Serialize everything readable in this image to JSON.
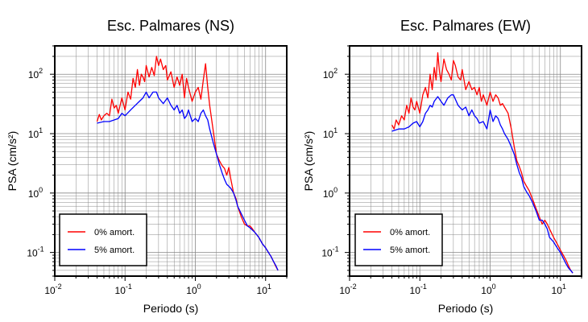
{
  "chart_data": [
    {
      "type": "line",
      "title": "Esc. Palmares (NS)",
      "xlabel": "Periodo (s)",
      "ylabel": "PSA (cm/s²)",
      "x_scale": "log",
      "y_scale": "log",
      "xlim": [
        0.01,
        20
      ],
      "ylim": [
        0.04,
        300
      ],
      "grid": true,
      "legend_position": "bottom-left",
      "x_ticks": [
        0.01,
        0.1,
        1,
        10
      ],
      "y_ticks": [
        0.1,
        1,
        10,
        100
      ],
      "series": [
        {
          "name": "0% amort.",
          "color": "#ff0000",
          "x": [
            0.04,
            0.043,
            0.046,
            0.05,
            0.055,
            0.06,
            0.065,
            0.07,
            0.075,
            0.08,
            0.09,
            0.1,
            0.11,
            0.12,
            0.13,
            0.14,
            0.15,
            0.16,
            0.17,
            0.18,
            0.19,
            0.2,
            0.22,
            0.24,
            0.26,
            0.28,
            0.3,
            0.32,
            0.35,
            0.38,
            0.4,
            0.45,
            0.5,
            0.55,
            0.6,
            0.65,
            0.7,
            0.75,
            0.8,
            0.9,
            1.0,
            1.1,
            1.2,
            1.3,
            1.4,
            1.5,
            1.6,
            1.8,
            2.0,
            2.2,
            2.4,
            2.6,
            2.8,
            3.0,
            3.2,
            3.5,
            3.8,
            4.0,
            4.5,
            5.0,
            5.5,
            6.0,
            6.5,
            7.0,
            8.0,
            9.0,
            10.0,
            11.0,
            12.0,
            13.0,
            14.0,
            15.0
          ],
          "values": [
            16,
            21,
            17,
            20,
            22,
            20,
            38,
            27,
            30,
            22,
            40,
            25,
            50,
            38,
            85,
            60,
            120,
            65,
            100,
            90,
            75,
            140,
            90,
            130,
            95,
            200,
            140,
            180,
            120,
            140,
            80,
            110,
            60,
            90,
            65,
            100,
            40,
            85,
            60,
            35,
            50,
            60,
            38,
            80,
            150,
            60,
            30,
            11,
            4.5,
            3.5,
            2.9,
            2.6,
            2.0,
            2.7,
            1.7,
            1.0,
            0.8,
            0.6,
            0.4,
            0.3,
            0.28,
            0.28,
            0.25,
            0.22,
            0.18,
            0.14,
            0.12,
            0.1,
            0.085,
            0.07,
            0.058,
            0.05
          ]
        },
        {
          "name": "5% amort.",
          "color": "#0000ff",
          "x": [
            0.04,
            0.05,
            0.06,
            0.07,
            0.08,
            0.09,
            0.1,
            0.12,
            0.14,
            0.16,
            0.18,
            0.2,
            0.22,
            0.25,
            0.28,
            0.3,
            0.35,
            0.4,
            0.45,
            0.5,
            0.55,
            0.6,
            0.65,
            0.7,
            0.75,
            0.8,
            0.9,
            1.0,
            1.1,
            1.2,
            1.3,
            1.4,
            1.5,
            1.6,
            1.8,
            2.0,
            2.2,
            2.4,
            2.6,
            2.8,
            3.0,
            3.2,
            3.5,
            3.8,
            4.0,
            4.5,
            5.0,
            5.5,
            6.0,
            7.0,
            8.0,
            9.0,
            10.0,
            11.0,
            12.0,
            13.0,
            14.0,
            15.0
          ],
          "values": [
            15,
            16,
            16,
            17,
            18,
            22,
            20,
            25,
            30,
            35,
            40,
            50,
            40,
            50,
            50,
            40,
            32,
            40,
            30,
            25,
            30,
            22,
            25,
            18,
            20,
            25,
            16,
            18,
            16,
            22,
            25,
            20,
            17,
            12,
            7,
            4.5,
            3.0,
            2.2,
            1.7,
            1.4,
            1.3,
            1.2,
            1.0,
            0.75,
            0.6,
            0.45,
            0.35,
            0.28,
            0.26,
            0.22,
            0.18,
            0.14,
            0.12,
            0.1,
            0.085,
            0.07,
            0.06,
            0.05
          ]
        }
      ]
    },
    {
      "type": "line",
      "title": "Esc. Palmares (EW)",
      "xlabel": "Periodo (s)",
      "ylabel": "PSA (cm/s²)",
      "x_scale": "log",
      "y_scale": "log",
      "xlim": [
        0.01,
        20
      ],
      "ylim": [
        0.04,
        300
      ],
      "grid": true,
      "legend_position": "bottom-left",
      "x_ticks": [
        0.01,
        0.1,
        1,
        10
      ],
      "y_ticks": [
        0.1,
        1,
        10,
        100
      ],
      "series": [
        {
          "name": "0% amort.",
          "color": "#ff0000",
          "x": [
            0.04,
            0.043,
            0.046,
            0.05,
            0.055,
            0.06,
            0.065,
            0.07,
            0.075,
            0.08,
            0.085,
            0.09,
            0.1,
            0.11,
            0.12,
            0.13,
            0.14,
            0.15,
            0.16,
            0.17,
            0.18,
            0.19,
            0.2,
            0.22,
            0.24,
            0.26,
            0.28,
            0.3,
            0.32,
            0.35,
            0.38,
            0.4,
            0.45,
            0.5,
            0.55,
            0.6,
            0.65,
            0.7,
            0.75,
            0.8,
            0.9,
            1.0,
            1.1,
            1.2,
            1.3,
            1.4,
            1.5,
            1.6,
            1.8,
            2.0,
            2.2,
            2.4,
            2.6,
            2.8,
            3.0,
            3.3,
            3.6,
            4.0,
            4.5,
            5.0,
            5.5,
            6.0,
            6.5,
            7.0,
            8.0,
            9.0,
            10.0,
            11.0,
            12.0,
            13.0,
            14.0,
            15.0
          ],
          "values": [
            14,
            12,
            17,
            14,
            20,
            17,
            30,
            22,
            40,
            28,
            25,
            35,
            22,
            45,
            60,
            40,
            100,
            55,
            130,
            80,
            230,
            110,
            75,
            180,
            120,
            100,
            80,
            170,
            140,
            90,
            80,
            120,
            55,
            75,
            55,
            60,
            45,
            60,
            35,
            45,
            30,
            50,
            35,
            45,
            40,
            30,
            32,
            28,
            22,
            12,
            6,
            3.5,
            2.8,
            2.2,
            1.6,
            1.3,
            1.1,
            0.8,
            0.55,
            0.4,
            0.3,
            0.35,
            0.3,
            0.25,
            0.18,
            0.14,
            0.11,
            0.09,
            0.075,
            0.06,
            0.05,
            0.045
          ]
        },
        {
          "name": "5% amort.",
          "color": "#0000ff",
          "x": [
            0.04,
            0.05,
            0.06,
            0.07,
            0.08,
            0.09,
            0.1,
            0.11,
            0.12,
            0.13,
            0.14,
            0.15,
            0.16,
            0.18,
            0.2,
            0.22,
            0.25,
            0.28,
            0.3,
            0.35,
            0.4,
            0.45,
            0.5,
            0.55,
            0.6,
            0.65,
            0.7,
            0.8,
            0.9,
            1.0,
            1.1,
            1.2,
            1.3,
            1.4,
            1.5,
            1.6,
            1.8,
            2.0,
            2.2,
            2.4,
            2.6,
            2.8,
            3.0,
            3.3,
            3.6,
            4.0,
            4.5,
            5.0,
            5.5,
            6.0,
            6.5,
            7.0,
            8.0,
            9.0,
            10.0,
            11.0,
            12.0,
            13.0,
            14.0,
            15.0
          ],
          "values": [
            11,
            12,
            12,
            13,
            15,
            16,
            13,
            16,
            22,
            25,
            30,
            28,
            35,
            42,
            35,
            30,
            40,
            45,
            45,
            30,
            25,
            28,
            20,
            25,
            20,
            18,
            15,
            16,
            12,
            25,
            16,
            20,
            18,
            14,
            12,
            10,
            8,
            6,
            4.5,
            3,
            2.2,
            1.8,
            1.3,
            1.05,
            0.9,
            0.7,
            0.5,
            0.35,
            0.35,
            0.3,
            0.25,
            0.18,
            0.15,
            0.12,
            0.1,
            0.08,
            0.065,
            0.055,
            0.05,
            0.045
          ]
        }
      ]
    }
  ]
}
